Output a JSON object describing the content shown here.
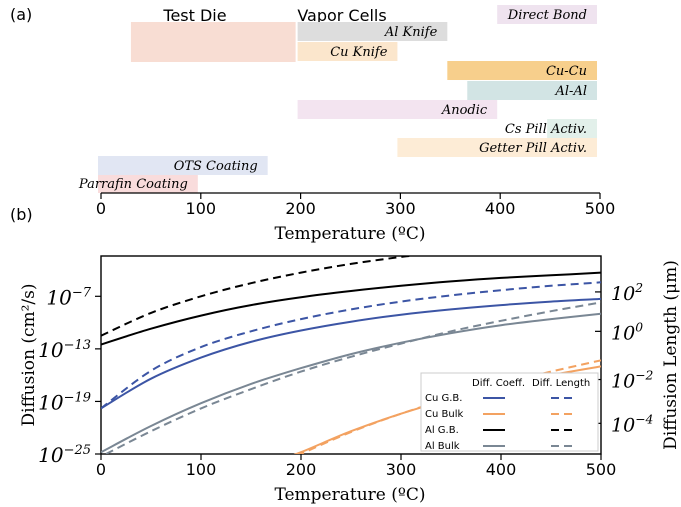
{
  "panel_a_label": "(a)",
  "panel_b_label": "(b)",
  "chart_data": [
    {
      "type": "range_bar",
      "header_test_die": "Test Die",
      "header_vapor_cells": "Vapor Cells",
      "xlabel": "Temperature (ºC)",
      "xlim": [
        0,
        500
      ],
      "xticks": [
        0,
        100,
        200,
        300,
        400,
        500
      ],
      "bars": [
        {
          "label": "",
          "start": 30,
          "end": 195,
          "color": "#f8ddd3"
        },
        {
          "label": "Direct Bond",
          "start": 397,
          "end": 497,
          "color": "#efe3ef"
        },
        {
          "label": "Al Knife",
          "start": 197,
          "end": 347,
          "color": "#dddddd"
        },
        {
          "label": "Cu Knife",
          "start": 197,
          "end": 297,
          "color": "#fbe6cc"
        },
        {
          "label": "Cu-Cu",
          "start": 347,
          "end": 497,
          "color": "#f7cf8c"
        },
        {
          "label": "Al-Al",
          "start": 367,
          "end": 497,
          "color": "#d2e4e4"
        },
        {
          "label": "Anodic",
          "start": 197,
          "end": 397,
          "color": "#f3e4f0"
        },
        {
          "label": "Cs Pill Activ.",
          "start": 447,
          "end": 497,
          "color": "#e2f0ea"
        },
        {
          "label": "Getter Pill Activ.",
          "start": 297,
          "end": 497,
          "color": "#fdecd6"
        },
        {
          "label": "OTS Coating",
          "start": -3,
          "end": 167,
          "color": "#e1e6f3"
        },
        {
          "label": "Parrafin Coating",
          "start": -3,
          "end": 97,
          "color": "#f9dcdc"
        }
      ]
    },
    {
      "type": "line",
      "xlabel": "Temperature (ºC)",
      "ylabel": "Diffusion (cm²/s)",
      "ylabel2": "Diffusion Length (μm)",
      "xlim": [
        0,
        500
      ],
      "xticks": [
        0,
        100,
        200,
        300,
        400,
        500
      ],
      "ylim_log10": [
        -25,
        -2.4
      ],
      "yticks_left": [
        {
          "base": "10",
          "exp": "−7"
        },
        {
          "base": "10",
          "exp": "−13"
        },
        {
          "base": "10",
          "exp": "−19"
        },
        {
          "base": "10",
          "exp": "−25"
        }
      ],
      "yticks_left_exp": [
        -7,
        -13,
        -19,
        -25
      ],
      "yticks_right": [
        {
          "base": "10",
          "exp": "2"
        },
        {
          "base": "10",
          "exp": "0"
        },
        {
          "base": "10",
          "exp": "−2"
        },
        {
          "base": "10",
          "exp": "−4"
        }
      ],
      "yticks_right_pos": [
        -6.5,
        -11.0,
        -16.5,
        -21.5
      ],
      "legend": {
        "col1": "Diff. Coeff.",
        "col2": "Diff. Length",
        "rows": [
          {
            "name": "Cu G.B.",
            "color": "#3c55a5"
          },
          {
            "name": "Cu Bulk",
            "color": "#f3a261"
          },
          {
            "name": "Al G.B.",
            "color": "#000000"
          },
          {
            "name": "Al Bulk",
            "color": "#7a8794"
          }
        ]
      },
      "series": [
        {
          "name": "Cu G.B.",
          "kind": "Diff. Coeff.",
          "color": "#3c55a5",
          "dash": false,
          "x": [
            0,
            50,
            100,
            150,
            200,
            250,
            300,
            350,
            400,
            450,
            500
          ],
          "y": [
            -19.8,
            -16.4,
            -14.0,
            -12.2,
            -10.9,
            -9.9,
            -9.1,
            -8.5,
            -8.0,
            -7.6,
            -7.3
          ]
        },
        {
          "name": "Cu G.B.",
          "kind": "Diff. Length",
          "color": "#3c55a5",
          "dash": true,
          "x": [
            0,
            50,
            100,
            150,
            200,
            250,
            300,
            350,
            400,
            450,
            500
          ],
          "y": [
            -19.8,
            -15.5,
            -12.8,
            -11.0,
            -9.6,
            -8.5,
            -7.6,
            -6.9,
            -6.3,
            -5.8,
            -5.4
          ]
        },
        {
          "name": "Cu Bulk",
          "kind": "Diff. Coeff.",
          "color": "#f3a261",
          "dash": false,
          "x": [
            170,
            200,
            250,
            300,
            350,
            400,
            450,
            500
          ],
          "y": [
            -26.0,
            -24.8,
            -22.4,
            -20.4,
            -18.7,
            -17.2,
            -16.0,
            -15.0
          ]
        },
        {
          "name": "Cu Bulk",
          "kind": "Diff. Length",
          "color": "#f3a261",
          "dash": true,
          "x": [
            185,
            200,
            250,
            300,
            350,
            400,
            450,
            500
          ],
          "y": [
            -26.0,
            -25.0,
            -22.5,
            -20.4,
            -18.6,
            -17.0,
            -15.6,
            -14.3
          ]
        },
        {
          "name": "Al G.B.",
          "kind": "Diff. Coeff.",
          "color": "#000000",
          "dash": false,
          "x": [
            0,
            50,
            100,
            150,
            200,
            250,
            300,
            350,
            400,
            450,
            500
          ],
          "y": [
            -12.5,
            -10.7,
            -9.2,
            -8.0,
            -7.1,
            -6.4,
            -5.8,
            -5.3,
            -4.9,
            -4.6,
            -4.3
          ]
        },
        {
          "name": "Al G.B.",
          "kind": "Diff. Length",
          "color": "#000000",
          "dash": true,
          "x": [
            0,
            50,
            100,
            150,
            200,
            250,
            300,
            310
          ],
          "y": [
            -11.5,
            -8.9,
            -7.0,
            -5.5,
            -4.3,
            -3.3,
            -2.5,
            -2.4
          ]
        },
        {
          "name": "Al Bulk",
          "kind": "Diff. Coeff.",
          "color": "#7a8794",
          "dash": false,
          "x": [
            0,
            50,
            100,
            150,
            200,
            250,
            300,
            350,
            400,
            450,
            500
          ],
          "y": [
            -24.8,
            -21.8,
            -19.2,
            -17.0,
            -15.2,
            -13.6,
            -12.3,
            -11.2,
            -10.3,
            -9.6,
            -9.0
          ]
        },
        {
          "name": "Al Bulk",
          "kind": "Diff. Length",
          "color": "#7a8794",
          "dash": true,
          "x": [
            5,
            50,
            100,
            150,
            200,
            250,
            300,
            350,
            400,
            450,
            500
          ],
          "y": [
            -25.0,
            -22.4,
            -19.8,
            -17.6,
            -15.6,
            -13.9,
            -12.4,
            -11.0,
            -9.8,
            -8.7,
            -7.7
          ]
        }
      ]
    }
  ]
}
